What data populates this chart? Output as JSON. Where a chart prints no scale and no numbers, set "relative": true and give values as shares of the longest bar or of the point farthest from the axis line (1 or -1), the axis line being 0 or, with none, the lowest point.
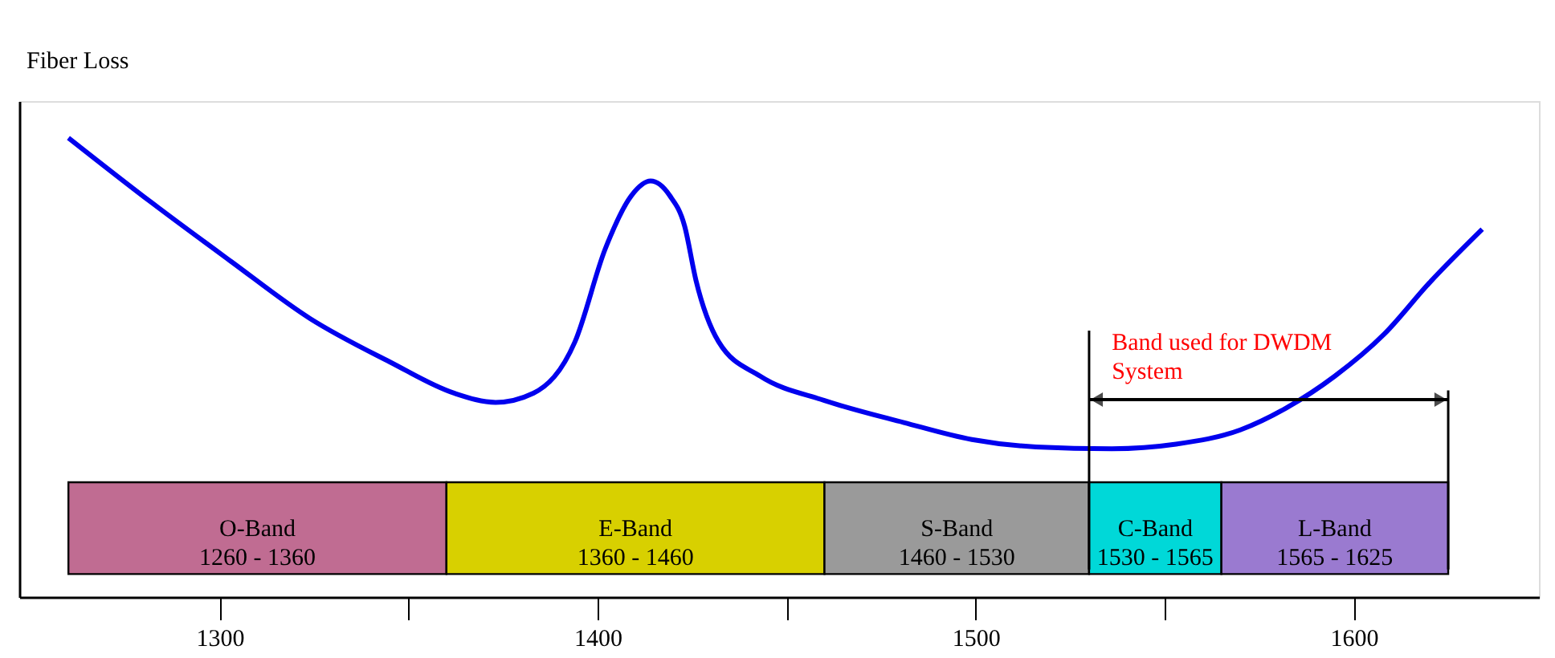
{
  "chart_data": {
    "type": "line",
    "relative": true,
    "ylabel": "Fiber Loss",
    "x": [
      1260,
      1282,
      1303,
      1324,
      1345,
      1362,
      1373,
      1383,
      1394,
      1402,
      1409,
      1414,
      1419,
      1423,
      1426,
      1432,
      1443,
      1460,
      1481,
      1499,
      1516,
      1536,
      1553,
      1570,
      1582,
      1595,
      1608,
      1620,
      1634
    ],
    "series": [
      {
        "color": "#0000ee",
        "values": [
          1,
          0.859,
          0.731,
          0.606,
          0.512,
          0.444,
          0.424,
          0.444,
          0.556,
          0.758,
          0.875,
          0.906,
          0.875,
          0.808,
          0.69,
          0.556,
          0.481,
          0.428,
          0.38,
          0.343,
          0.327,
          0.323,
          0.333,
          0.364,
          0.411,
          0.481,
          0.572,
          0.684,
          0.801
        ]
      }
    ],
    "xlim": [
      1247,
      1649
    ],
    "xticks": [
      1300,
      {
        "value": 1350,
        "label": null
      },
      1400,
      {
        "value": 1450,
        "label": null
      },
      1500,
      {
        "value": 1550,
        "label": null
      },
      1600
    ],
    "bands": [
      {
        "axis": "x",
        "from": 1260,
        "to": 1360,
        "label": "O-Band\n1260 - 1360",
        "color": "#c06c92"
      },
      {
        "axis": "x",
        "from": 1360,
        "to": 1460,
        "label": "E-Band\n1360 - 1460",
        "color": "#d8d000"
      },
      {
        "axis": "x",
        "from": 1460,
        "to": 1530,
        "label": "S-Band\n1460 - 1530",
        "color": "#9a9a9a"
      },
      {
        "axis": "x",
        "from": 1530,
        "to": 1565,
        "label": "C-Band\n1530 - 1565",
        "color": "#00d8d8"
      },
      {
        "axis": "x",
        "from": 1565,
        "to": 1625,
        "label": "L-Band\n1565 - 1625",
        "color": "#9a7ad0"
      }
    ],
    "ref_lines": [
      {
        "axis": "x",
        "value": 1530,
        "color": "#000000"
      },
      {
        "axis": "x",
        "value": 1625,
        "color": "#000000"
      }
    ],
    "annotations": [
      "Band used for DWDM\nSystem"
    ],
    "grid": false
  }
}
